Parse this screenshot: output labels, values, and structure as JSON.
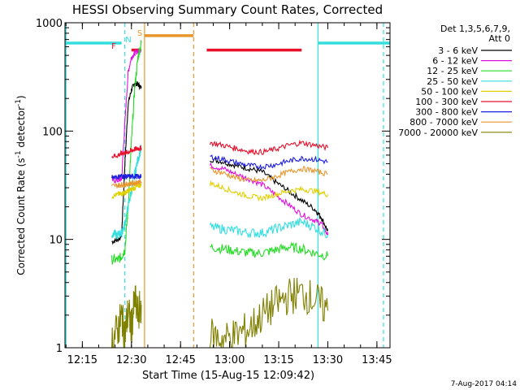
{
  "chart_data": {
    "type": "line",
    "title": "HESSI Observing Summary Count Rates, Corrected",
    "xlabel": "Start Time (15-Aug-15 12:09:42)",
    "ylabel": "Corrected Count Rate (s⁻¹ detector⁻¹)",
    "ylabel_main": "Corrected Count Rate (s",
    "ylabel_sup1": "-1",
    "ylabel_mid": " detector",
    "ylabel_sup2": "-1",
    "ylabel_end": ")",
    "yscale": "log",
    "ylim": [
      1,
      1000
    ],
    "xlim": [
      "12:09:42",
      "13:49:00"
    ],
    "x_ticks": [
      "12:15",
      "12:30",
      "12:45",
      "13:00",
      "13:15",
      "13:30",
      "13:45"
    ],
    "y_ticks": [
      "1",
      "10",
      "100",
      "1000"
    ],
    "legend_header": [
      "Det 1,3,5,6,7,9,",
      "Att 0"
    ],
    "legend_position": "right",
    "footer_stamp": "7-Aug-2017 04:14",
    "flag_labels": [
      {
        "text": "F",
        "color": "#e8102a"
      },
      {
        "text": "N",
        "color": "#35dede"
      },
      {
        "text": "S",
        "color": "#e8962c"
      }
    ],
    "series": [
      {
        "name": "3 - 6 keV",
        "color": "#000000",
        "segments": [
          {
            "x": [
              "12:24",
              "12:26",
              "12:27",
              "12:28",
              "12:29",
              "12:30",
              "12:31",
              "12:32",
              "12:33"
            ],
            "y": [
              9.5,
              10,
              11,
              50,
              180,
              240,
              280,
              270,
              250
            ]
          },
          {
            "x": [
              "12:54",
              "12:58",
              "13:02",
              "13:06",
              "13:10",
              "13:14",
              "13:18",
              "13:22",
              "13:26",
              "13:28",
              "13:30"
            ],
            "y": [
              55,
              52,
              48,
              45,
              42,
              34,
              28,
              23,
              19,
              16,
              12
            ]
          }
        ]
      },
      {
        "name": "6 - 12 keV",
        "color": "#e011e0",
        "segments": [
          {
            "x": [
              "12:24",
              "12:26",
              "12:27",
              "12:28",
              "12:29",
              "12:30",
              "12:31",
              "12:32",
              "12:33"
            ],
            "y": [
              35,
              35,
              36,
              120,
              350,
              480,
              520,
              550,
              560
            ]
          },
          {
            "x": [
              "12:54",
              "12:58",
              "13:02",
              "13:06",
              "13:10",
              "13:14",
              "13:18",
              "13:22",
              "13:26",
              "13:28",
              "13:30"
            ],
            "y": [
              48,
              45,
              40,
              36,
              32,
              26,
              21,
              17,
              15,
              14,
              11
            ]
          }
        ]
      },
      {
        "name": "12 - 25 keV",
        "color": "#22dd22",
        "segments": [
          {
            "x": [
              "12:24",
              "12:26",
              "12:27",
              "12:28",
              "12:29",
              "12:30",
              "12:31",
              "12:32",
              "12:33"
            ],
            "y": [
              6.5,
              6.5,
              7,
              8,
              20,
              80,
              250,
              480,
              650
            ]
          },
          {
            "x": [
              "12:54",
              "12:58",
              "13:02",
              "13:06",
              "13:10",
              "13:14",
              "13:18",
              "13:22",
              "13:26",
              "13:30"
            ],
            "y": [
              8.5,
              8.2,
              7.8,
              7.5,
              7.5,
              8,
              8.5,
              8.2,
              7.5,
              7
            ]
          }
        ]
      },
      {
        "name": "25 - 50 keV",
        "color": "#35dede",
        "segments": [
          {
            "x": [
              "12:24",
              "12:26",
              "12:27",
              "12:28",
              "12:29",
              "12:30",
              "12:31",
              "12:32",
              "12:33"
            ],
            "y": [
              11,
              11,
              11.5,
              14,
              20,
              28,
              40,
              55,
              70
            ]
          },
          {
            "x": [
              "12:54",
              "12:58",
              "13:02",
              "13:06",
              "13:10",
              "13:14",
              "13:18",
              "13:22",
              "13:26",
              "13:30"
            ],
            "y": [
              13,
              12.5,
              12,
              11.5,
              11.5,
              12.5,
              13.5,
              14.5,
              13,
              11
            ]
          }
        ]
      },
      {
        "name": "50 - 100 keV",
        "color": "#e0d000",
        "segments": [
          {
            "x": [
              "12:24",
              "12:26",
              "12:27",
              "12:28",
              "12:29",
              "12:30",
              "12:31",
              "12:32",
              "12:33"
            ],
            "y": [
              25,
              26,
              26.5,
              27,
              28,
              29,
              30,
              31,
              32
            ]
          },
          {
            "x": [
              "12:54",
              "12:58",
              "13:02",
              "13:06",
              "13:10",
              "13:14",
              "13:18",
              "13:22",
              "13:26",
              "13:30"
            ],
            "y": [
              33,
              30,
              27,
              25,
              24,
              26,
              28,
              29,
              28,
              26
            ]
          }
        ]
      },
      {
        "name": "100 - 300 keV",
        "color": "#e8102a",
        "segments": [
          {
            "x": [
              "12:24",
              "12:26",
              "12:27",
              "12:28",
              "12:29",
              "12:30",
              "12:31",
              "12:32",
              "12:33"
            ],
            "y": [
              58,
              60,
              62,
              63,
              64,
              66,
              68,
              69,
              70
            ]
          },
          {
            "x": [
              "12:54",
              "12:58",
              "13:02",
              "13:06",
              "13:10",
              "13:14",
              "13:18",
              "13:22",
              "13:26",
              "13:30"
            ],
            "y": [
              78,
              74,
              69,
              65,
              64,
              68,
              74,
              78,
              74,
              70
            ]
          }
        ]
      },
      {
        "name": "300 - 800 keV",
        "color": "#1f1fdd",
        "segments": [
          {
            "x": [
              "12:24",
              "12:26",
              "12:27",
              "12:28",
              "12:29",
              "12:30",
              "12:31",
              "12:32",
              "12:33"
            ],
            "y": [
              38,
              38,
              38.5,
              38,
              38,
              38,
              38.5,
              38,
              38
            ]
          },
          {
            "x": [
              "12:54",
              "12:58",
              "13:02",
              "13:06",
              "13:10",
              "13:14",
              "13:18",
              "13:22",
              "13:26",
              "13:30"
            ],
            "y": [
              58,
              55,
              51,
              48,
              47,
              49,
              53,
              56,
              55,
              52
            ]
          }
        ]
      },
      {
        "name": "800 - 7000 keV",
        "color": "#e8962c",
        "segments": [
          {
            "x": [
              "12:24",
              "12:26",
              "12:27",
              "12:28",
              "12:29",
              "12:30",
              "12:31",
              "12:32",
              "12:33"
            ],
            "y": [
              31,
              31.5,
              32,
              32,
              32.5,
              33,
              33,
              34,
              34
            ]
          },
          {
            "x": [
              "12:54",
              "12:58",
              "13:02",
              "13:06",
              "13:10",
              "13:14",
              "13:18",
              "13:22",
              "13:26",
              "13:30"
            ],
            "y": [
              44,
              41,
              37,
              35,
              35,
              38,
              42,
              45,
              43,
              40
            ]
          }
        ]
      },
      {
        "name": "7000 - 20000 keV",
        "color": "#808000",
        "segments": [
          {
            "x": [
              "12:24",
              "12:26",
              "12:27",
              "12:28",
              "12:29",
              "12:30",
              "12:31",
              "12:32",
              "12:33"
            ],
            "y": [
              1.2,
              1.5,
              2,
              1.3,
              2.2,
              1.5,
              2.8,
              2,
              2.5
            ]
          },
          {
            "x": [
              "12:54",
              "12:58",
              "13:02",
              "13:06",
              "13:10",
              "13:14",
              "13:18",
              "13:22",
              "13:26",
              "13:30"
            ],
            "y": [
              1.3,
              1.2,
              1.3,
              1.5,
              2,
              2.5,
              3,
              3.2,
              2.8,
              2.2
            ]
          }
        ]
      }
    ],
    "state_bars": [
      {
        "flag": "F",
        "color": "#e8102a",
        "x": [
          "12:30",
          "12:33"
        ],
        "y": 560
      },
      {
        "flag": "S",
        "color": "#e8962c",
        "x": [
          "12:34",
          "12:49"
        ],
        "y": 760
      },
      {
        "flag": "F",
        "color": "#e8102a",
        "x": [
          "12:53",
          "13:22"
        ],
        "y": 560
      },
      {
        "flag": "N",
        "color": "#35dede",
        "x": [
          "12:09:42",
          "12:27"
        ],
        "y": 650
      },
      {
        "flag": "N",
        "color": "#35dede",
        "x": [
          "13:27",
          "13:49"
        ],
        "y": 650
      }
    ],
    "vertical_markers": [
      {
        "x": "12:10",
        "color": "#35dede",
        "style": "solid"
      },
      {
        "x": "12:28",
        "color": "#35dede",
        "style": "dashed"
      },
      {
        "x": "12:34",
        "color": "#e8962c",
        "style": "solid"
      },
      {
        "x": "12:49",
        "color": "#e8962c",
        "style": "dashed"
      },
      {
        "x": "13:27",
        "color": "#35dede",
        "style": "solid"
      },
      {
        "x": "13:47",
        "color": "#35dede",
        "style": "dashed"
      }
    ]
  }
}
